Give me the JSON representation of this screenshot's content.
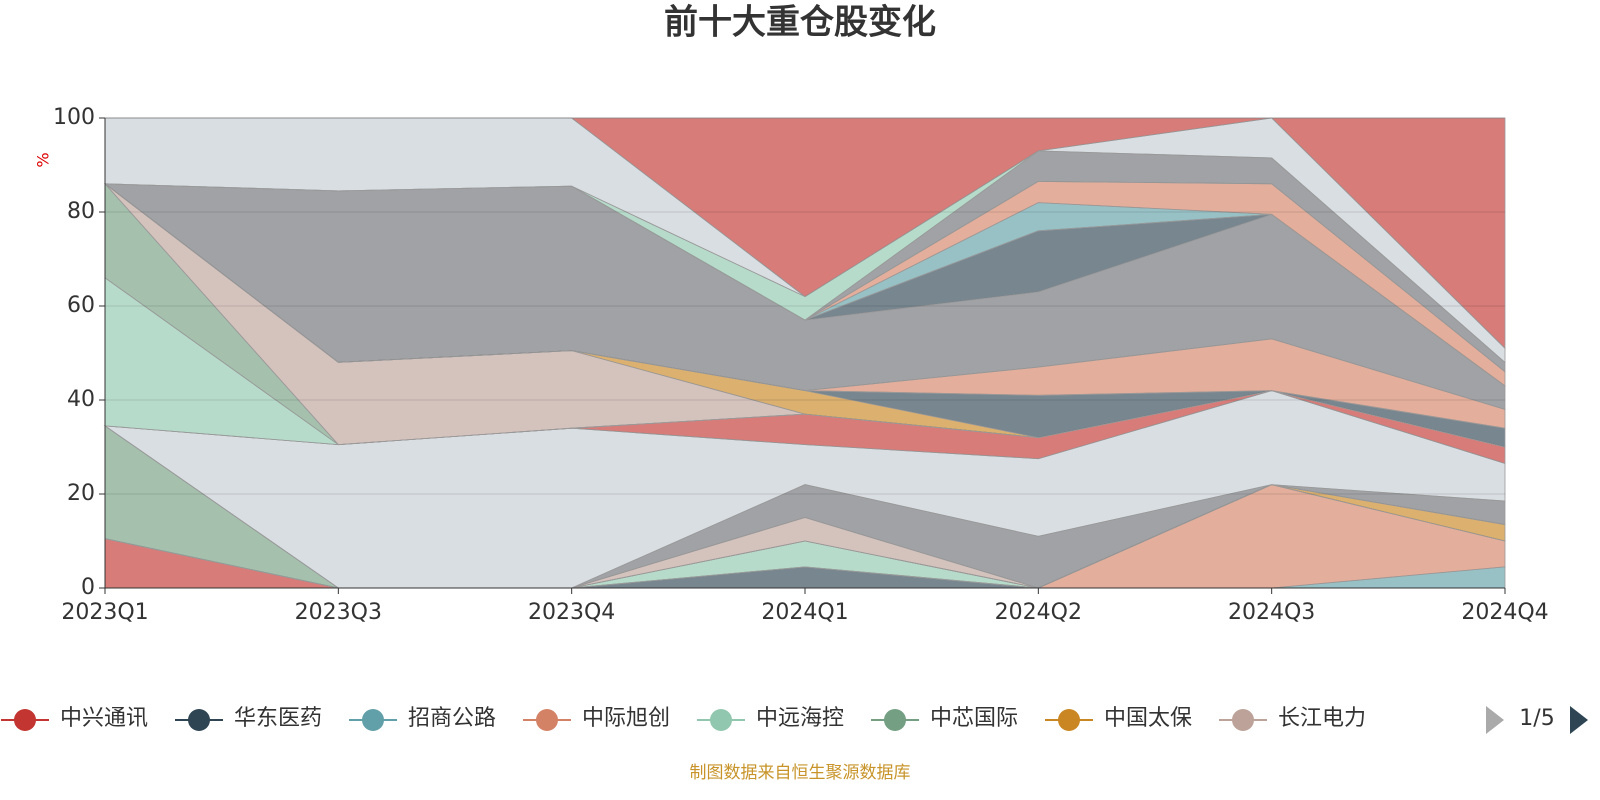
{
  "chart_data": {
    "type": "stacked_area",
    "title": "前十大重仓股变化",
    "y_axis_label": "%",
    "categories": [
      "2023Q1",
      "2023Q3",
      "2023Q4",
      "2024Q1",
      "2024Q2",
      "2024Q3",
      "2024Q4"
    ],
    "ylim": [
      0,
      100
    ],
    "yticks": [
      0,
      20,
      40,
      60,
      80,
      100
    ],
    "grid": true,
    "legend_page": "1/5",
    "source": "制图数据来自恒生聚源数据库",
    "series": [
      {
        "name": "中兴通讯",
        "color": "#c23531",
        "values": [
          10.5,
          0,
          0,
          0,
          0,
          0,
          0
        ]
      },
      {
        "name": "华东医药",
        "color": "#2f4554",
        "values": [
          0,
          0,
          0,
          4.5,
          0,
          0,
          0
        ]
      },
      {
        "name": "招商公路",
        "color": "#61a0a8",
        "values": [
          0,
          0,
          0,
          0,
          0,
          0,
          4.5
        ]
      },
      {
        "name": "中际旭创",
        "color": "#d48265",
        "values": [
          0,
          0,
          0,
          0,
          0,
          22,
          5.5
        ]
      },
      {
        "name": "中远海控",
        "color": "#91c7ae",
        "values": [
          0,
          0,
          0,
          5.5,
          0,
          0,
          0
        ]
      },
      {
        "name": "中芯国际",
        "color": "#749f83",
        "values": [
          24,
          0,
          0,
          0,
          0,
          0,
          0
        ]
      },
      {
        "name": "中国太保",
        "color": "#ca8622",
        "values": [
          0,
          0,
          0,
          0,
          0,
          0,
          3.5
        ]
      },
      {
        "name": "长江电力",
        "color": "#bda29a",
        "values": [
          0,
          0,
          0,
          5,
          0,
          0,
          0
        ]
      },
      {
        "color": "#6e7074",
        "values": [
          0,
          0,
          0,
          7,
          11,
          0,
          5
        ]
      },
      {
        "color": "#c4ccd3",
        "values": [
          0,
          30.5,
          34,
          8.5,
          16.5,
          20,
          8
        ]
      },
      {
        "color": "#c23531",
        "values": [
          0,
          0,
          0,
          6.5,
          4.5,
          0,
          3.5
        ]
      },
      {
        "color": "#91c7ae",
        "values": [
          31.5,
          0,
          0,
          0,
          0,
          0,
          0
        ]
      },
      {
        "color": "#749f83",
        "values": [
          20,
          0,
          0,
          0,
          0,
          0,
          0
        ]
      },
      {
        "color": "#bda29a",
        "values": [
          0,
          17.5,
          16.5,
          0,
          0,
          0,
          0
        ]
      },
      {
        "color": "#ca8622",
        "values": [
          0,
          0,
          0,
          5,
          0,
          0,
          0
        ]
      },
      {
        "color": "#2f4554",
        "values": [
          0,
          0,
          0,
          0,
          9,
          0,
          4
        ]
      },
      {
        "color": "#d48265",
        "values": [
          0,
          0,
          0,
          0,
          6,
          11,
          4
        ]
      },
      {
        "color": "#6e7074",
        "values": [
          0,
          36.5,
          35,
          15,
          16,
          26.5,
          5
        ]
      },
      {
        "color": "#2f4554",
        "values": [
          0,
          0,
          0,
          0,
          13,
          0,
          0
        ]
      },
      {
        "color": "#61a0a8",
        "values": [
          0,
          0,
          0,
          0,
          6,
          0,
          0
        ]
      },
      {
        "color": "#d48265",
        "values": [
          0,
          0,
          0,
          0,
          4.5,
          6.5,
          3
        ]
      },
      {
        "color": "#6e7074",
        "values": [
          0,
          0,
          0,
          0,
          6.5,
          5.5,
          2
        ]
      },
      {
        "color": "#91c7ae",
        "values": [
          0,
          0,
          0,
          5,
          0,
          0,
          0
        ]
      },
      {
        "color": "#c4ccd3",
        "values": [
          14,
          15.5,
          14.5,
          0,
          0,
          8.5,
          3
        ]
      },
      {
        "color": "#c23531",
        "values": [
          0,
          0,
          0,
          38,
          7,
          0,
          49
        ]
      }
    ]
  }
}
